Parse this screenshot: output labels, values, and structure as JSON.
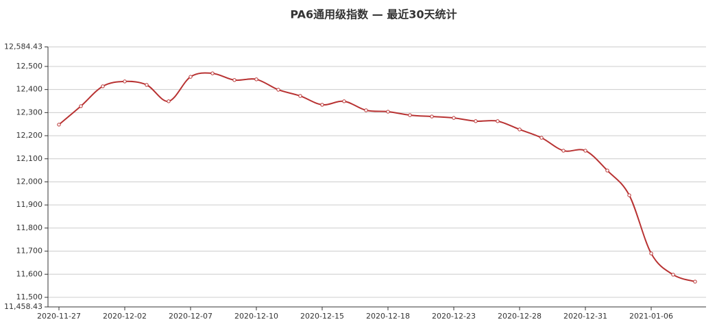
{
  "chart_data": {
    "type": "line",
    "title": "PA6通用级指数 — 最近30天统计",
    "categories": [
      "2020-11-27",
      null,
      null,
      "2020-12-02",
      null,
      null,
      "2020-12-07",
      null,
      null,
      "2020-12-10",
      null,
      null,
      "2020-12-15",
      null,
      null,
      "2020-12-18",
      null,
      null,
      "2020-12-23",
      null,
      null,
      "2020-12-28",
      null,
      null,
      "2020-12-31",
      null,
      null,
      "2021-01-06",
      null,
      null
    ],
    "values": [
      12248,
      12328,
      12414,
      12435,
      12420,
      12349,
      12455,
      12470,
      12441,
      12444,
      12399,
      12372,
      12334,
      12349,
      12310,
      12304,
      12289,
      12283,
      12277,
      12263,
      12263,
      12227,
      12191,
      12135,
      12135,
      12049,
      11942,
      11690,
      11598,
      11568
    ],
    "color": "#b83232",
    "smooth": true,
    "grid": true,
    "ylim": [
      11458.43,
      12584.43
    ],
    "yticks": [
      {
        "value": 11458.43,
        "label": "11,458.43"
      },
      {
        "value": 11500,
        "label": "11,500"
      },
      {
        "value": 11600,
        "label": "11,600"
      },
      {
        "value": 11700,
        "label": "11,700"
      },
      {
        "value": 11800,
        "label": "11,800"
      },
      {
        "value": 11900,
        "label": "11,900"
      },
      {
        "value": 12000,
        "label": "12,000"
      },
      {
        "value": 12100,
        "label": "12,100"
      },
      {
        "value": 12200,
        "label": "12,200"
      },
      {
        "value": 12300,
        "label": "12,300"
      },
      {
        "value": 12400,
        "label": "12,400"
      },
      {
        "value": 12500,
        "label": "12,500"
      },
      {
        "value": 12584.43,
        "label": "12,584.43"
      }
    ]
  }
}
